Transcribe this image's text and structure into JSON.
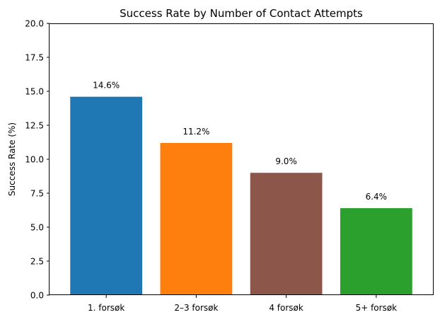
{
  "chart_data": {
    "type": "bar",
    "title": "Success Rate by Number of Contact Attempts",
    "xlabel": "",
    "ylabel": "Success Rate (%)",
    "categories": [
      "1. forsøk",
      "2–3 forsøk",
      "4 forsøk",
      "5+ forsøk"
    ],
    "values": [
      14.6,
      11.2,
      9.0,
      6.4
    ],
    "value_labels": [
      "14.6%",
      "11.2%",
      "9.0%",
      "6.4%"
    ],
    "colors": [
      "#1f77b4",
      "#ff7f0e",
      "#8c564b",
      "#2ca02c"
    ],
    "ylim": [
      0,
      20
    ],
    "yticks": [
      0.0,
      2.5,
      5.0,
      7.5,
      10.0,
      12.5,
      15.0,
      17.5,
      20.0
    ],
    "ytick_labels": [
      "0.0",
      "2.5",
      "5.0",
      "7.5",
      "10.0",
      "12.5",
      "15.0",
      "17.5",
      "20.0"
    ],
    "grid": false,
    "legend": "none"
  }
}
